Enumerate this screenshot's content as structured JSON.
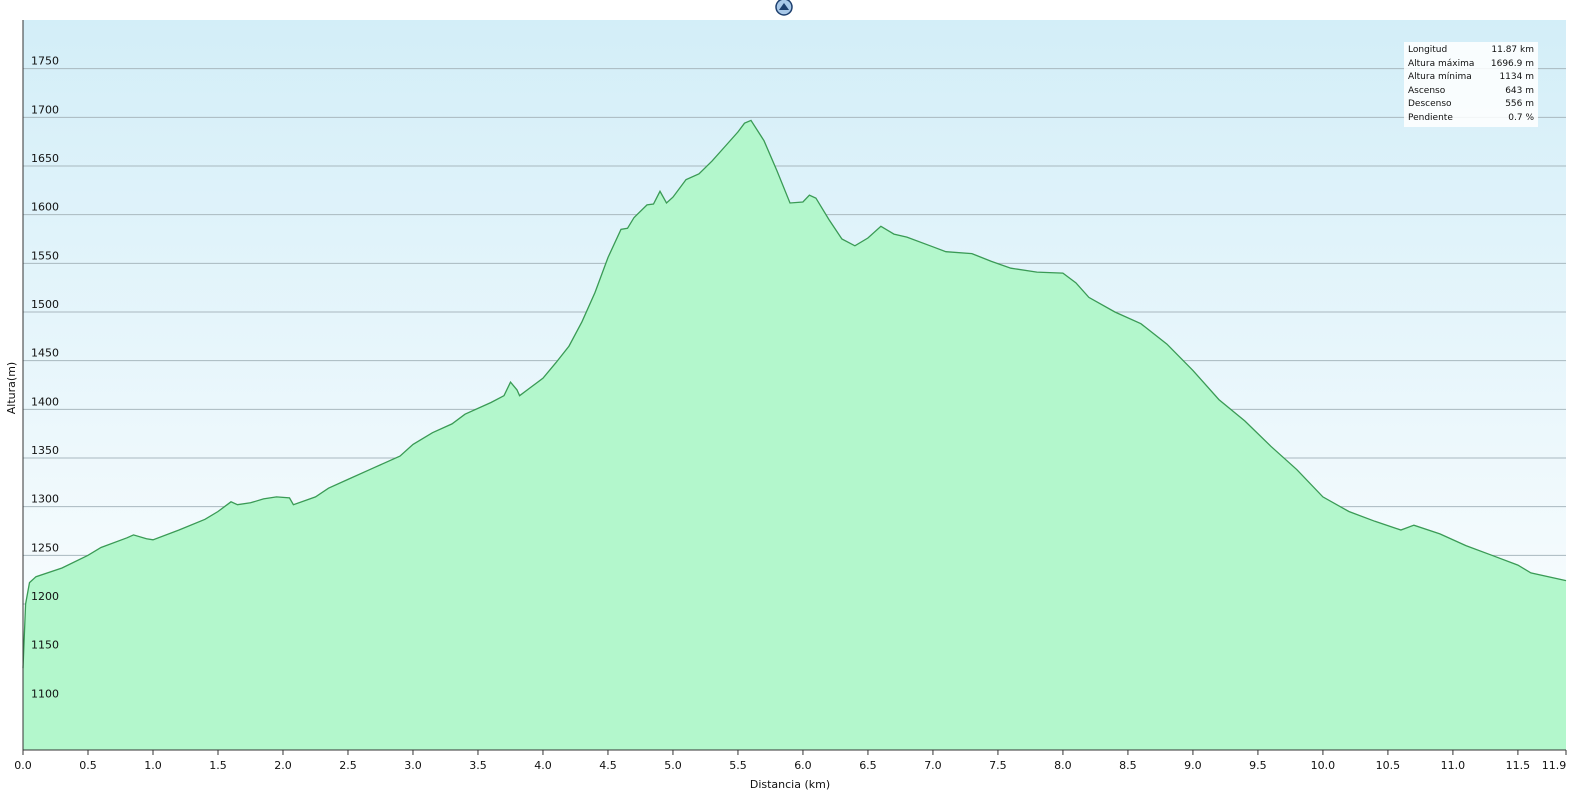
{
  "chart_data": {
    "type": "area",
    "x_label": "Distancia  (km)",
    "y_label": "Altura(m)",
    "color": "#b3f7cc",
    "line_color": "#3a9a55",
    "grid": true,
    "xlim": [
      0,
      11.87
    ],
    "ylim": [
      1050,
      1800
    ],
    "xticks": [
      {
        "value": 0,
        "label": "0.0"
      },
      0.5,
      {
        "value": 1,
        "label": "1.0"
      },
      1.5,
      {
        "value": 2,
        "label": "2.0"
      },
      2.5,
      {
        "value": 3,
        "label": "3.0"
      },
      3.5,
      {
        "value": 4,
        "label": "4.0"
      },
      4.5,
      {
        "value": 5,
        "label": "5.0"
      },
      5.5,
      {
        "value": 6,
        "label": "6.0"
      },
      6.5,
      {
        "value": 7,
        "label": "7.0"
      },
      7.5,
      {
        "value": 8,
        "label": "8.0"
      },
      8.5,
      {
        "value": 9,
        "label": "9.0"
      },
      9.5,
      {
        "value": 10,
        "label": "10.0"
      },
      10.5,
      {
        "value": 11,
        "label": "11.0"
      },
      11.5,
      {
        "value": 11.87,
        "label": "11.9"
      }
    ],
    "yticks": [
      1100,
      1150,
      1200,
      1250,
      1300,
      1350,
      1400,
      1450,
      1500,
      1550,
      1600,
      1650,
      1700,
      1750
    ],
    "x": [
      0,
      0.02,
      0.05,
      0.1,
      0.3,
      0.5,
      0.6,
      0.8,
      0.85,
      0.95,
      1.0,
      1.2,
      1.4,
      1.5,
      1.6,
      1.65,
      1.75,
      1.85,
      1.95,
      2.05,
      2.08,
      2.25,
      2.35,
      2.5,
      2.7,
      2.9,
      3.0,
      3.15,
      3.3,
      3.4,
      3.6,
      3.7,
      3.75,
      3.8,
      3.82,
      3.9,
      4.0,
      4.1,
      4.2,
      4.3,
      4.4,
      4.5,
      4.6,
      4.65,
      4.7,
      4.8,
      4.85,
      4.9,
      4.95,
      5.0,
      5.1,
      5.2,
      5.3,
      5.4,
      5.5,
      5.55,
      5.6,
      5.7,
      5.8,
      5.9,
      6.0,
      6.05,
      6.1,
      6.2,
      6.3,
      6.4,
      6.5,
      6.6,
      6.7,
      6.8,
      7.0,
      7.1,
      7.3,
      7.45,
      7.6,
      7.8,
      8.0,
      8.1,
      8.2,
      8.4,
      8.6,
      8.8,
      9.0,
      9.2,
      9.4,
      9.6,
      9.8,
      10.0,
      10.2,
      10.4,
      10.6,
      10.7,
      10.9,
      11.1,
      11.3,
      11.5,
      11.6,
      11.87
    ],
    "values": [
      1134,
      1200,
      1222,
      1228,
      1237,
      1250,
      1258,
      1268,
      1271,
      1267,
      1266,
      1276,
      1287,
      1295,
      1305,
      1302,
      1304,
      1308,
      1310,
      1309,
      1302,
      1310,
      1319,
      1328,
      1340,
      1352,
      1364,
      1376,
      1385,
      1395,
      1407,
      1414,
      1428,
      1420,
      1414,
      1422,
      1432,
      1448,
      1465,
      1490,
      1520,
      1556,
      1585,
      1586,
      1597,
      1610,
      1611,
      1624,
      1612,
      1618,
      1636,
      1642,
      1655,
      1670,
      1685,
      1694,
      1696.9,
      1676,
      1645,
      1612,
      1613,
      1620,
      1617,
      1595,
      1575,
      1568,
      1576,
      1588,
      1580,
      1577,
      1567,
      1562,
      1560,
      1552,
      1545,
      1541,
      1540,
      1530,
      1515,
      1500,
      1488,
      1467,
      1440,
      1410,
      1388,
      1362,
      1338,
      1310,
      1295,
      1285,
      1276,
      1281,
      1272,
      1260,
      1250,
      1240,
      1232,
      1224
    ],
    "stats": [
      {
        "label": "Longitud",
        "value": "11.87 km"
      },
      {
        "label": "Altura máxima",
        "value": "1696.9 m"
      },
      {
        "label": "Altura mínima",
        "value": "1134 m"
      },
      {
        "label": "Ascenso",
        "value": "643 m"
      },
      {
        "label": "Descenso",
        "value": "556 m"
      },
      {
        "label": "Pendiente",
        "value": "0.7 %"
      }
    ]
  }
}
